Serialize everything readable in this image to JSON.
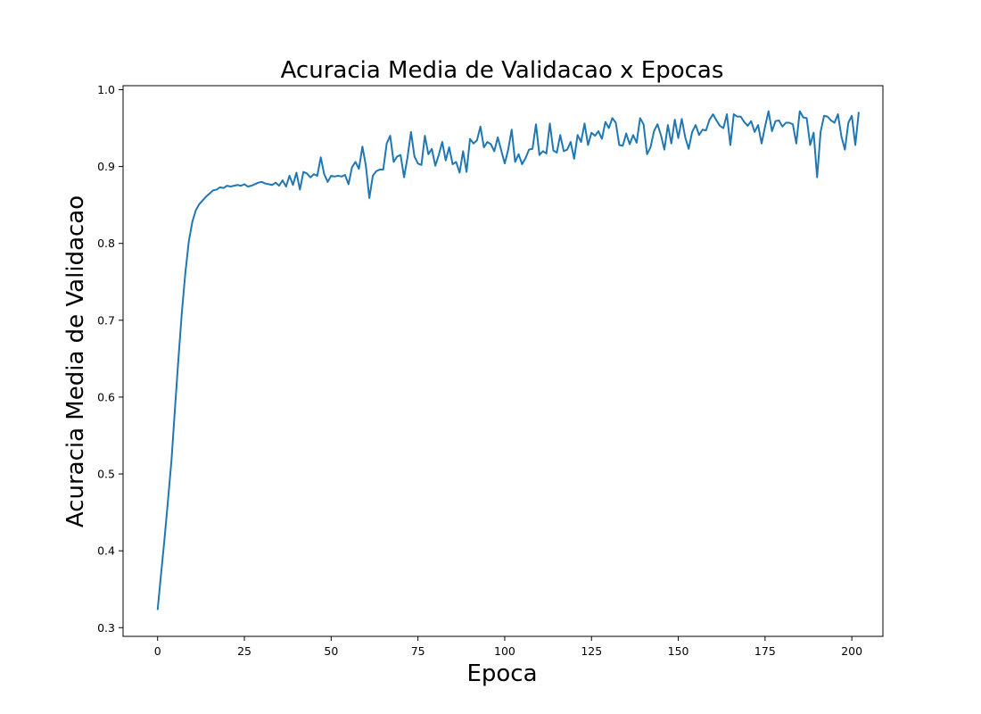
{
  "chart_data": {
    "type": "line",
    "title": "Acuracia Media de Validacao x Epocas",
    "xlabel": "Epoca",
    "ylabel": "Acuracia Media de Validacao",
    "xlim": [
      -9.95,
      208.95
    ],
    "ylim": [
      0.2887,
      1.0052
    ],
    "x_ticks": [
      0,
      25,
      50,
      75,
      100,
      125,
      150,
      175,
      200
    ],
    "y_ticks": [
      0.3,
      0.4,
      0.5,
      0.6,
      0.7,
      0.8,
      0.9,
      1.0
    ],
    "x_tick_labels": [
      "0",
      "25",
      "50",
      "75",
      "100",
      "125",
      "150",
      "175",
      "200"
    ],
    "y_tick_labels": [
      "0.3",
      "0.4",
      "0.5",
      "0.6",
      "0.7",
      "0.8",
      "0.9",
      "1.0"
    ],
    "grid": false,
    "line_color": "#1f77b4",
    "series": [
      {
        "x_start": 0,
        "x_step": 1,
        "values": [
          0.323,
          0.37,
          0.416,
          0.466,
          0.518,
          0.585,
          0.65,
          0.711,
          0.762,
          0.803,
          0.828,
          0.843,
          0.851,
          0.856,
          0.861,
          0.865,
          0.869,
          0.87,
          0.873,
          0.872,
          0.875,
          0.874,
          0.875,
          0.876,
          0.875,
          0.877,
          0.874,
          0.875,
          0.877,
          0.879,
          0.88,
          0.878,
          0.877,
          0.876,
          0.879,
          0.875,
          0.882,
          0.874,
          0.888,
          0.876,
          0.892,
          0.87,
          0.893,
          0.891,
          0.886,
          0.89,
          0.888,
          0.912,
          0.89,
          0.88,
          0.888,
          0.887,
          0.888,
          0.887,
          0.889,
          0.877,
          0.899,
          0.906,
          0.897,
          0.926,
          0.901,
          0.859,
          0.888,
          0.894,
          0.896,
          0.896,
          0.93,
          0.94,
          0.906,
          0.913,
          0.915,
          0.886,
          0.912,
          0.945,
          0.913,
          0.904,
          0.902,
          0.94,
          0.916,
          0.923,
          0.901,
          0.915,
          0.932,
          0.908,
          0.925,
          0.903,
          0.906,
          0.892,
          0.92,
          0.893,
          0.936,
          0.93,
          0.934,
          0.952,
          0.925,
          0.932,
          0.929,
          0.92,
          0.938,
          0.921,
          0.904,
          0.922,
          0.948,
          0.906,
          0.916,
          0.903,
          0.911,
          0.922,
          0.923,
          0.955,
          0.915,
          0.92,
          0.917,
          0.956,
          0.921,
          0.918,
          0.941,
          0.92,
          0.922,
          0.932,
          0.91,
          0.941,
          0.932,
          0.956,
          0.928,
          0.944,
          0.94,
          0.946,
          0.936,
          0.958,
          0.95,
          0.963,
          0.957,
          0.928,
          0.927,
          0.943,
          0.929,
          0.941,
          0.931,
          0.963,
          0.955,
          0.916,
          0.925,
          0.946,
          0.955,
          0.941,
          0.922,
          0.954,
          0.93,
          0.961,
          0.937,
          0.962,
          0.938,
          0.923,
          0.945,
          0.954,
          0.941,
          0.948,
          0.947,
          0.961,
          0.968,
          0.96,
          0.953,
          0.95,
          0.968,
          0.928,
          0.968,
          0.965,
          0.965,
          0.958,
          0.953,
          0.959,
          0.945,
          0.954,
          0.93,
          0.952,
          0.972,
          0.946,
          0.959,
          0.96,
          0.952,
          0.957,
          0.957,
          0.955,
          0.93,
          0.972,
          0.964,
          0.963,
          0.928,
          0.944,
          0.886,
          0.945,
          0.966,
          0.965,
          0.96,
          0.957,
          0.968,
          0.939,
          0.922,
          0.957,
          0.966,
          0.928,
          0.971
        ]
      }
    ]
  }
}
